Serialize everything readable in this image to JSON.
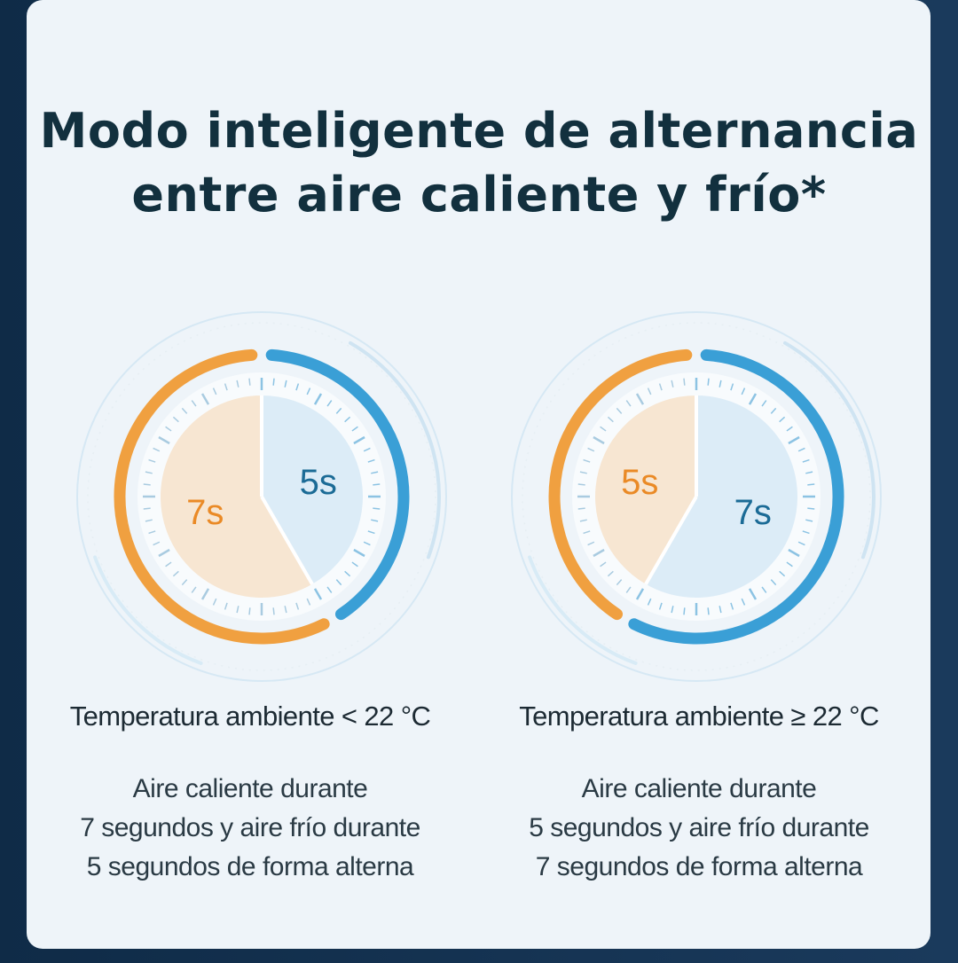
{
  "title": {
    "line1": "Modo inteligente de alternancia",
    "line2": "entre aire caliente y frío*"
  },
  "colors": {
    "hot": "#f0a040",
    "hot_fill": "#f7e6d2",
    "cold": "#3a9fd6",
    "cold_fill": "#dcecf7",
    "hot_text": "#ea8a26",
    "cold_text": "#1b6b96"
  },
  "modes": [
    {
      "hot_seconds": 7,
      "cold_seconds": 5,
      "hot_label": "7s",
      "cold_label": "5s",
      "condition": "Temperatura ambiente < 22 °C",
      "description": [
        "Aire caliente durante",
        "7 segundos y aire frío durante",
        "5 segundos de forma alterna"
      ]
    },
    {
      "hot_seconds": 5,
      "cold_seconds": 7,
      "hot_label": "5s",
      "cold_label": "7s",
      "condition": "Temperatura ambiente ≥ 22 °C",
      "description": [
        "Aire caliente durante",
        "5 segundos y aire frío durante",
        "7 segundos de forma alterna"
      ]
    }
  ]
}
